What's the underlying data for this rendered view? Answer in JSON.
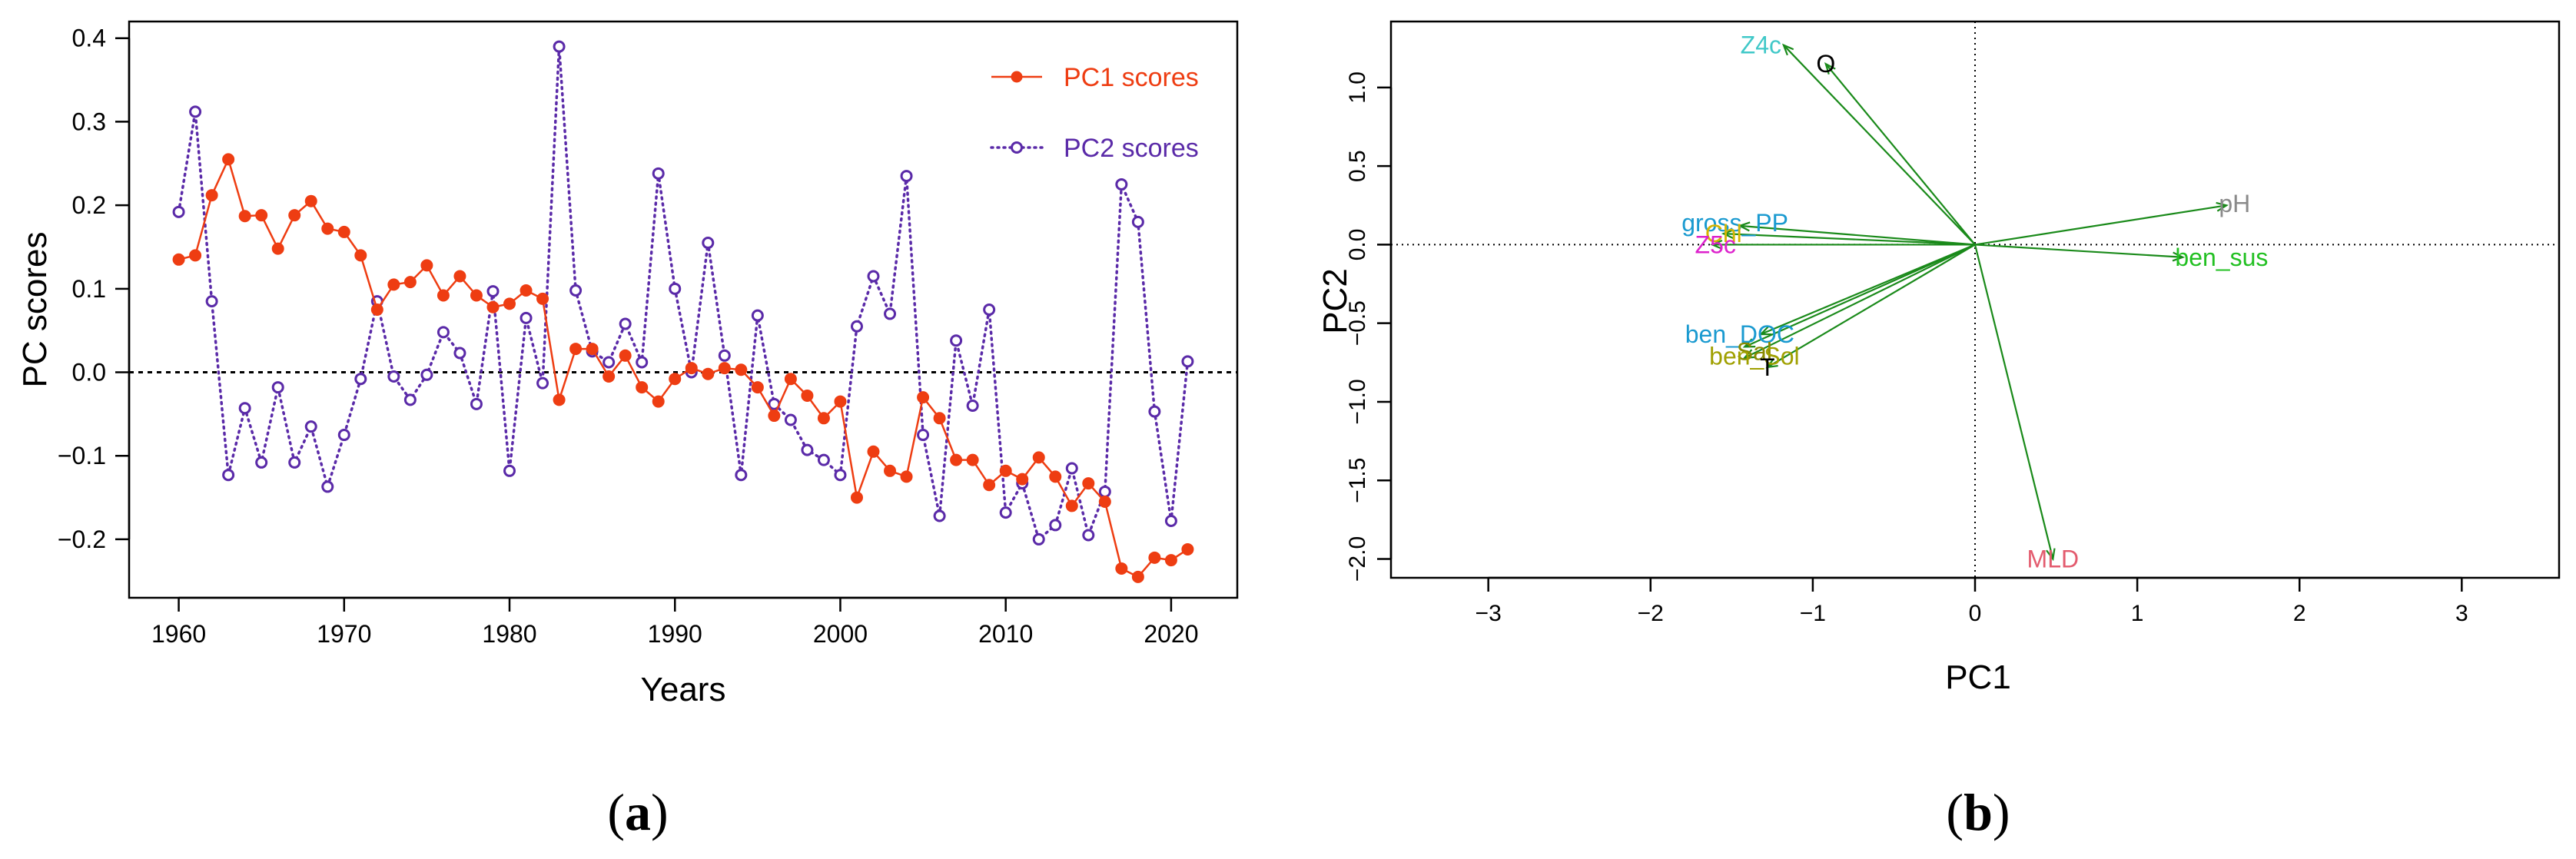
{
  "chart_data": [
    {
      "type": "line",
      "panel_label": "(a)",
      "panel_letter": "a",
      "xlabel": "Years",
      "ylabel": "PC scores",
      "xlim": [
        1957,
        2024
      ],
      "ylim": [
        -0.27,
        0.42
      ],
      "xticks": [
        1960,
        1970,
        1980,
        1990,
        2000,
        2010,
        2020
      ],
      "yticks": [
        -0.2,
        -0.1,
        0.0,
        0.1,
        0.2,
        0.3,
        0.4
      ],
      "ytick_labels": [
        "−0.2",
        "−0.1",
        "0.0",
        "0.1",
        "0.2",
        "0.3",
        "0.4"
      ],
      "hline": 0,
      "legend_position": "top-right",
      "x": [
        1960,
        1961,
        1962,
        1963,
        1964,
        1965,
        1966,
        1967,
        1968,
        1969,
        1970,
        1971,
        1972,
        1973,
        1974,
        1975,
        1976,
        1977,
        1978,
        1979,
        1980,
        1981,
        1982,
        1983,
        1984,
        1985,
        1986,
        1987,
        1988,
        1989,
        1990,
        1991,
        1992,
        1993,
        1994,
        1995,
        1996,
        1997,
        1998,
        1999,
        2000,
        2001,
        2002,
        2003,
        2004,
        2005,
        2006,
        2007,
        2008,
        2009,
        2010,
        2011,
        2012,
        2013,
        2014,
        2015,
        2016,
        2017,
        2018,
        2019,
        2020,
        2021
      ],
      "series": [
        {
          "name": "PC1 scores",
          "color": "#ee3d12",
          "style": "solid",
          "marker": "filled-circle",
          "values": [
            0.135,
            0.14,
            0.212,
            0.255,
            0.187,
            0.188,
            0.148,
            0.188,
            0.205,
            0.172,
            0.168,
            0.14,
            0.075,
            0.105,
            0.108,
            0.128,
            0.092,
            0.115,
            0.092,
            0.078,
            0.082,
            0.098,
            0.088,
            -0.033,
            0.028,
            0.028,
            -0.005,
            0.02,
            -0.018,
            -0.035,
            -0.008,
            0.005,
            -0.002,
            0.005,
            0.003,
            -0.018,
            -0.052,
            -0.008,
            -0.028,
            -0.055,
            -0.035,
            -0.15,
            -0.095,
            -0.118,
            -0.125,
            -0.03,
            -0.055,
            -0.105,
            -0.105,
            -0.135,
            -0.118,
            -0.128,
            -0.102,
            -0.125,
            -0.16,
            -0.133,
            -0.155,
            -0.235,
            -0.245,
            -0.222,
            -0.225,
            -0.212
          ]
        },
        {
          "name": "PC2 scores",
          "color": "#5a2aa8",
          "style": "dotted",
          "marker": "open-circle",
          "values": [
            0.192,
            0.312,
            0.085,
            -0.123,
            -0.043,
            -0.108,
            -0.018,
            -0.108,
            -0.065,
            -0.137,
            -0.075,
            -0.008,
            0.085,
            -0.005,
            -0.033,
            -0.003,
            0.048,
            0.023,
            -0.038,
            0.097,
            -0.118,
            0.065,
            -0.013,
            0.39,
            0.098,
            0.025,
            0.012,
            0.058,
            0.012,
            0.238,
            0.1,
            0.0,
            0.155,
            0.02,
            -0.123,
            0.068,
            -0.038,
            -0.057,
            -0.093,
            -0.105,
            -0.123,
            0.055,
            0.115,
            0.07,
            0.235,
            -0.075,
            -0.172,
            0.038,
            -0.04,
            0.075,
            -0.168,
            -0.133,
            -0.2,
            -0.183,
            -0.115,
            -0.195,
            -0.143,
            0.225,
            0.18,
            -0.047,
            -0.178,
            0.013
          ]
        }
      ]
    },
    {
      "type": "scatter",
      "subtype": "biplot",
      "panel_label": "(b)",
      "panel_letter": "b",
      "xlabel": "PC1",
      "ylabel": "PC2",
      "xlim": [
        -3.6,
        3.6
      ],
      "ylim": [
        -2.12,
        1.42
      ],
      "xticks": [
        -3,
        -2,
        -1,
        0,
        1,
        2,
        3
      ],
      "xtick_labels": [
        "−3",
        "−2",
        "−1",
        "0",
        "1",
        "2",
        "3"
      ],
      "yticks": [
        -2.0,
        -1.5,
        -1.0,
        -0.5,
        0.0,
        0.5,
        1.0
      ],
      "ytick_labels": [
        "−2.0",
        "−1.5",
        "−1.0",
        "−0.5",
        "0.0",
        "0.5",
        "1.0"
      ],
      "arrow_color": "#1a8a1a",
      "vectors": [
        {
          "name": "Z4c",
          "x": -1.18,
          "y": 1.27,
          "color": "#40c8c8",
          "label_x": -1.32,
          "label_y": 1.27
        },
        {
          "name": "O",
          "x": -0.92,
          "y": 1.15,
          "color": "#000000",
          "label_x": -0.92,
          "label_y": 1.15
        },
        {
          "name": "pH",
          "x": 1.55,
          "y": 0.25,
          "color": "#8a8a8a",
          "label_x": 1.6,
          "label_y": 0.26
        },
        {
          "name": "ben_sus",
          "x": 1.28,
          "y": -0.08,
          "color": "#22c022",
          "label_x": 1.52,
          "label_y": -0.08
        },
        {
          "name": "gross_PP",
          "x": -1.45,
          "y": 0.12,
          "color": "#1a9ad0",
          "label_x": -1.48,
          "label_y": 0.14
        },
        {
          "name": "Chl",
          "x": -1.55,
          "y": 0.07,
          "color": "#d4b400",
          "label_x": -1.55,
          "label_y": 0.07
        },
        {
          "name": "Z5c",
          "x": -1.62,
          "y": 0.0,
          "color": "#dd22cc",
          "label_x": -1.6,
          "label_y": 0.0
        },
        {
          "name": "ben_DOC",
          "x": -1.32,
          "y": -0.57,
          "color": "#1a9ad0",
          "label_x": -1.45,
          "label_y": -0.57
        },
        {
          "name": "Sal",
          "x": -1.42,
          "y": -0.65,
          "color": "#8a8a00",
          "label_x": -1.36,
          "label_y": -0.68
        },
        {
          "name": "ben_Sol",
          "x": -1.42,
          "y": -0.72,
          "color": "#a0a000",
          "label_x": -1.36,
          "label_y": -0.71
        },
        {
          "name": "T",
          "x": -1.28,
          "y": -0.78,
          "color": "#000000",
          "label_x": -1.28,
          "label_y": -0.78
        },
        {
          "name": "MLD",
          "x": 0.48,
          "y": -2.0,
          "color": "#e35b6e",
          "label_x": 0.48,
          "label_y": -2.0
        }
      ]
    }
  ]
}
